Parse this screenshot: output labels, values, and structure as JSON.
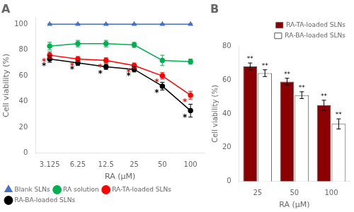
{
  "chart_data": [
    {
      "type": "line",
      "title": "A",
      "xlabel": "RA (μM)",
      "ylabel": "Cell viability (%)",
      "categories": [
        "3.125",
        "6.25",
        "12.5",
        "25",
        "50",
        "100"
      ],
      "series": [
        {
          "name": "Blank SLNs",
          "color": "#4472C4",
          "marker": "triangle",
          "values": [
            100,
            100,
            100,
            100,
            100,
            100
          ],
          "errors": [
            0.5,
            0.5,
            0.5,
            0.5,
            0.5,
            0.5
          ]
        },
        {
          "name": "RA solution",
          "color": "#00B050",
          "marker": "circle",
          "values": [
            83,
            85,
            85,
            84,
            72,
            71
          ],
          "errors": [
            3,
            2.5,
            2.5,
            2,
            4,
            2
          ]
        },
        {
          "name": "RA-TA-loaded SLNs",
          "color": "#FF0000",
          "marker": "circle",
          "values": [
            76,
            73,
            72,
            68,
            60,
            45
          ],
          "errors": [
            2.5,
            2,
            2,
            2,
            2.5,
            3
          ]
        },
        {
          "name": "RA-BA-loaded SLNs",
          "color": "#000000",
          "marker": "circle",
          "values": [
            73,
            70,
            67,
            65,
            52,
            33
          ],
          "errors": [
            2.5,
            2,
            2,
            2,
            3,
            5
          ]
        }
      ],
      "ylim": [
        0,
        105
      ],
      "yticks": [
        0,
        20,
        40,
        60,
        80,
        100
      ],
      "grid": false,
      "legend": "lower left",
      "annotations": [
        {
          "text": "*",
          "category": "3.125",
          "series": "RA-TA-loaded SLNs",
          "color": "red"
        },
        {
          "text": "*",
          "category": "6.25",
          "series": "RA-TA-loaded SLNs",
          "color": "red"
        },
        {
          "text": "*",
          "category": "12.5",
          "series": "RA-TA-loaded SLNs",
          "color": "red"
        },
        {
          "text": "*",
          "category": "25",
          "series": "RA-TA-loaded SLNs",
          "color": "red"
        },
        {
          "text": "*",
          "category": "50",
          "series": "RA-TA-loaded SLNs",
          "color": "red"
        },
        {
          "text": "*",
          "category": "100",
          "series": "RA-TA-loaded SLNs",
          "color": "red"
        },
        {
          "text": "*",
          "category": "3.125",
          "series": "RA-BA-loaded SLNs",
          "color": "black"
        },
        {
          "text": "*",
          "category": "6.25",
          "series": "RA-BA-loaded SLNs",
          "color": "black"
        },
        {
          "text": "*",
          "category": "12.5",
          "series": "RA-BA-loaded SLNs",
          "color": "black"
        },
        {
          "text": "*",
          "category": "25",
          "series": "RA-BA-loaded SLNs",
          "color": "black"
        },
        {
          "text": "*",
          "category": "50",
          "series": "RA-BA-loaded SLNs",
          "color": "black"
        },
        {
          "text": "*",
          "category": "100",
          "series": "RA-BA-loaded SLNs",
          "color": "black"
        }
      ]
    },
    {
      "type": "bar",
      "title": "B",
      "xlabel": "RA (μM)",
      "ylabel": "Cell viability (%)",
      "categories": [
        "25",
        "50",
        "100"
      ],
      "series": [
        {
          "name": "RA-TA-loaded SLNs",
          "color": "#8B0000",
          "values": [
            68,
            59,
            45
          ],
          "errors": [
            2,
            2,
            3
          ]
        },
        {
          "name": "RA-BA-loaded SLNs",
          "color": "#FFFFFF",
          "values": [
            64,
            51,
            34
          ],
          "errors": [
            2,
            2,
            3
          ]
        }
      ],
      "ylim": [
        0,
        80
      ],
      "yticks": [
        0,
        20,
        40,
        60,
        80
      ],
      "grid": false,
      "legend": "upper right",
      "annotations": [
        {
          "text": "**",
          "category": "25",
          "series": "RA-TA-loaded SLNs"
        },
        {
          "text": "**",
          "category": "50",
          "series": "RA-TA-loaded SLNs"
        },
        {
          "text": "**",
          "category": "100",
          "series": "RA-TA-loaded SLNs"
        },
        {
          "text": "**",
          "category": "25",
          "series": "RA-BA-loaded SLNs"
        },
        {
          "text": "**",
          "category": "50",
          "series": "RA-BA-loaded SLNs"
        },
        {
          "text": "**",
          "category": "100",
          "series": "RA-BA-loaded SLNs"
        }
      ]
    }
  ]
}
